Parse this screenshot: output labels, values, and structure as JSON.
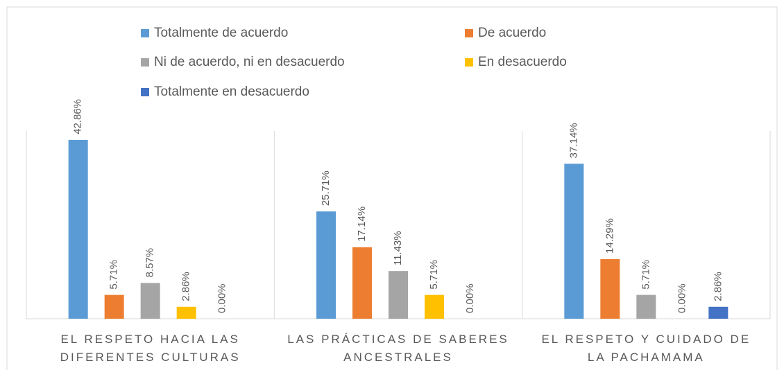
{
  "chart_data": {
    "type": "bar",
    "categories": [
      "EL RESPETO HACIA LAS DIFERENTES CULTURAS",
      "LAS PRÁCTICAS DE SABERES ANCESTRALES",
      "EL RESPETO Y CUIDADO DE LA PACHAMAMA"
    ],
    "series": [
      {
        "name": "Totalmente de acuerdo",
        "color": "#5b9bd5",
        "values": [
          42.86,
          25.71,
          37.14
        ],
        "value_labels": [
          "42.86%",
          "25.71%",
          "37.14%"
        ]
      },
      {
        "name": "De acuerdo",
        "color": "#ed7d31",
        "values": [
          5.71,
          17.14,
          14.29
        ],
        "value_labels": [
          "5.71%",
          "17.14%",
          "14.29%"
        ]
      },
      {
        "name": "Ni de acuerdo, ni en desacuerdo",
        "color": "#a5a5a5",
        "values": [
          8.57,
          11.43,
          5.71
        ],
        "value_labels": [
          "8.57%",
          "11.43%",
          "5.71%"
        ]
      },
      {
        "name": "En desacuerdo",
        "color": "#ffc000",
        "values": [
          2.86,
          5.71,
          0
        ],
        "value_labels": [
          "2.86%",
          "5.71%",
          "0.00%"
        ]
      },
      {
        "name": "Totalmente en desacuerdo",
        "color": "#4472c4",
        "values": [
          0,
          0,
          2.86
        ],
        "value_labels": [
          "0.00%",
          "0.00%",
          "2.86%"
        ]
      }
    ],
    "ylim": [
      0,
      45
    ],
    "legend": "top"
  }
}
